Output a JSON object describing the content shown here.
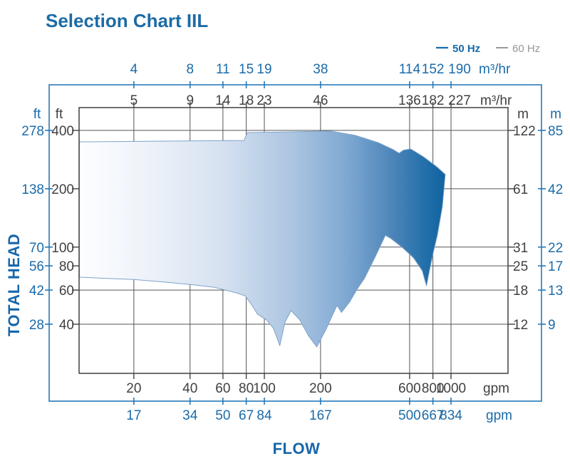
{
  "title": "Selection Chart IIL",
  "legend": {
    "hz50_label": "50 Hz",
    "hz60_label": "60 Hz",
    "hz50_color": "#1a6ba9",
    "hz60_color": "#9a9b9e"
  },
  "axes": {
    "x_label": "FLOW",
    "y_label": "TOTAL HEAD",
    "top_blue": {
      "values": [
        "4",
        "8",
        "11",
        "15",
        "19",
        "38",
        "114",
        "152",
        "190"
      ],
      "unit": "m³/hr"
    },
    "top_dark": {
      "values": [
        "5",
        "9",
        "14",
        "18",
        "23",
        "46",
        "136",
        "182",
        "227"
      ],
      "unit": "m³/hr"
    },
    "left_blue": {
      "header": "ft",
      "values": [
        "278",
        "138",
        "70",
        "56",
        "42",
        "28"
      ]
    },
    "left_dark": {
      "header": "ft",
      "values": [
        "400",
        "200",
        "100",
        "80",
        "60",
        "40"
      ]
    },
    "right_dark": {
      "header": "m",
      "values": [
        "122",
        "61",
        "31",
        "25",
        "18",
        "12"
      ]
    },
    "right_blue": {
      "header": "m",
      "values": [
        "85",
        "42",
        "22",
        "17",
        "13",
        "9"
      ]
    },
    "bottom_dark": {
      "values": [
        "20",
        "40",
        "60",
        "80",
        "100",
        "200",
        "600",
        "800",
        "1000"
      ],
      "unit": "gpm"
    },
    "bottom_blue": {
      "values": [
        "17",
        "34",
        "50",
        "67",
        "84",
        "167",
        "500",
        "667",
        "834"
      ],
      "unit": "gpm"
    }
  },
  "chart_data": {
    "type": "area",
    "title": "Selection Chart IIL",
    "xlabel": "FLOW",
    "ylabel": "TOTAL HEAD",
    "x_scale": {
      "type": "log",
      "unit": "gpm (60 Hz)",
      "ticks": [
        20,
        40,
        60,
        80,
        100,
        200,
        600,
        800,
        1000
      ],
      "range": [
        10,
        2100
      ]
    },
    "y_scale": {
      "type": "log",
      "unit": "ft",
      "ticks": [
        400,
        200,
        100,
        80,
        60,
        40
      ],
      "range": [
        22,
        530
      ]
    },
    "grid": true,
    "envelope_units": [
      "gpm_60hz",
      "ft"
    ],
    "envelope": [
      [
        10.2,
        349
      ],
      [
        26.6,
        352
      ],
      [
        78,
        355
      ],
      [
        79.4,
        374
      ],
      [
        81.5,
        390
      ],
      [
        132,
        393
      ],
      [
        225,
        397
      ],
      [
        307,
        377
      ],
      [
        407,
        346
      ],
      [
        491,
        318
      ],
      [
        527,
        305
      ],
      [
        556,
        316
      ],
      [
        608,
        321
      ],
      [
        713,
        292
      ],
      [
        837,
        260
      ],
      [
        931,
        237
      ],
      [
        899,
        162
      ],
      [
        845,
        115
      ],
      [
        808,
        96
      ],
      [
        766,
        75.5
      ],
      [
        739,
        63
      ],
      [
        701,
        75.5
      ],
      [
        630,
        88
      ],
      [
        546,
        100
      ],
      [
        474,
        111
      ],
      [
        445,
        115
      ],
      [
        390,
        88
      ],
      [
        344,
        69
      ],
      [
        315,
        61
      ],
      [
        286,
        52
      ],
      [
        259,
        46
      ],
      [
        245,
        50
      ],
      [
        215,
        38
      ],
      [
        191,
        30.5
      ],
      [
        172,
        35
      ],
      [
        155,
        42
      ],
      [
        139,
        47
      ],
      [
        129,
        41
      ],
      [
        121,
        31
      ],
      [
        112,
        38
      ],
      [
        103,
        42
      ],
      [
        92,
        45
      ],
      [
        86,
        50
      ],
      [
        79,
        56
      ],
      [
        71,
        58
      ],
      [
        54,
        62
      ],
      [
        41,
        64
      ],
      [
        29,
        66
      ],
      [
        20,
        68
      ],
      [
        14,
        69
      ],
      [
        10.2,
        70
      ]
    ],
    "gradient": [
      {
        "offset": 0,
        "color": "#fefeff"
      },
      {
        "offset": 0.18,
        "color": "#eef3fa"
      },
      {
        "offset": 0.38,
        "color": "#d7e2f1"
      },
      {
        "offset": 0.58,
        "color": "#aac4e1"
      },
      {
        "offset": 0.72,
        "color": "#7fa8d2"
      },
      {
        "offset": 0.85,
        "color": "#4a83b8"
      },
      {
        "offset": 0.94,
        "color": "#1e6da9"
      },
      {
        "offset": 1,
        "color": "#0d5f9c"
      }
    ],
    "outline_color": "#7fa3c8"
  },
  "colors": {
    "blue_line": "#2779b8",
    "blue_text": "#1a6ba9",
    "dark_text": "#414042",
    "grid_line": "#55565a",
    "border": "#3f4043",
    "title": "#1d6ba5"
  }
}
